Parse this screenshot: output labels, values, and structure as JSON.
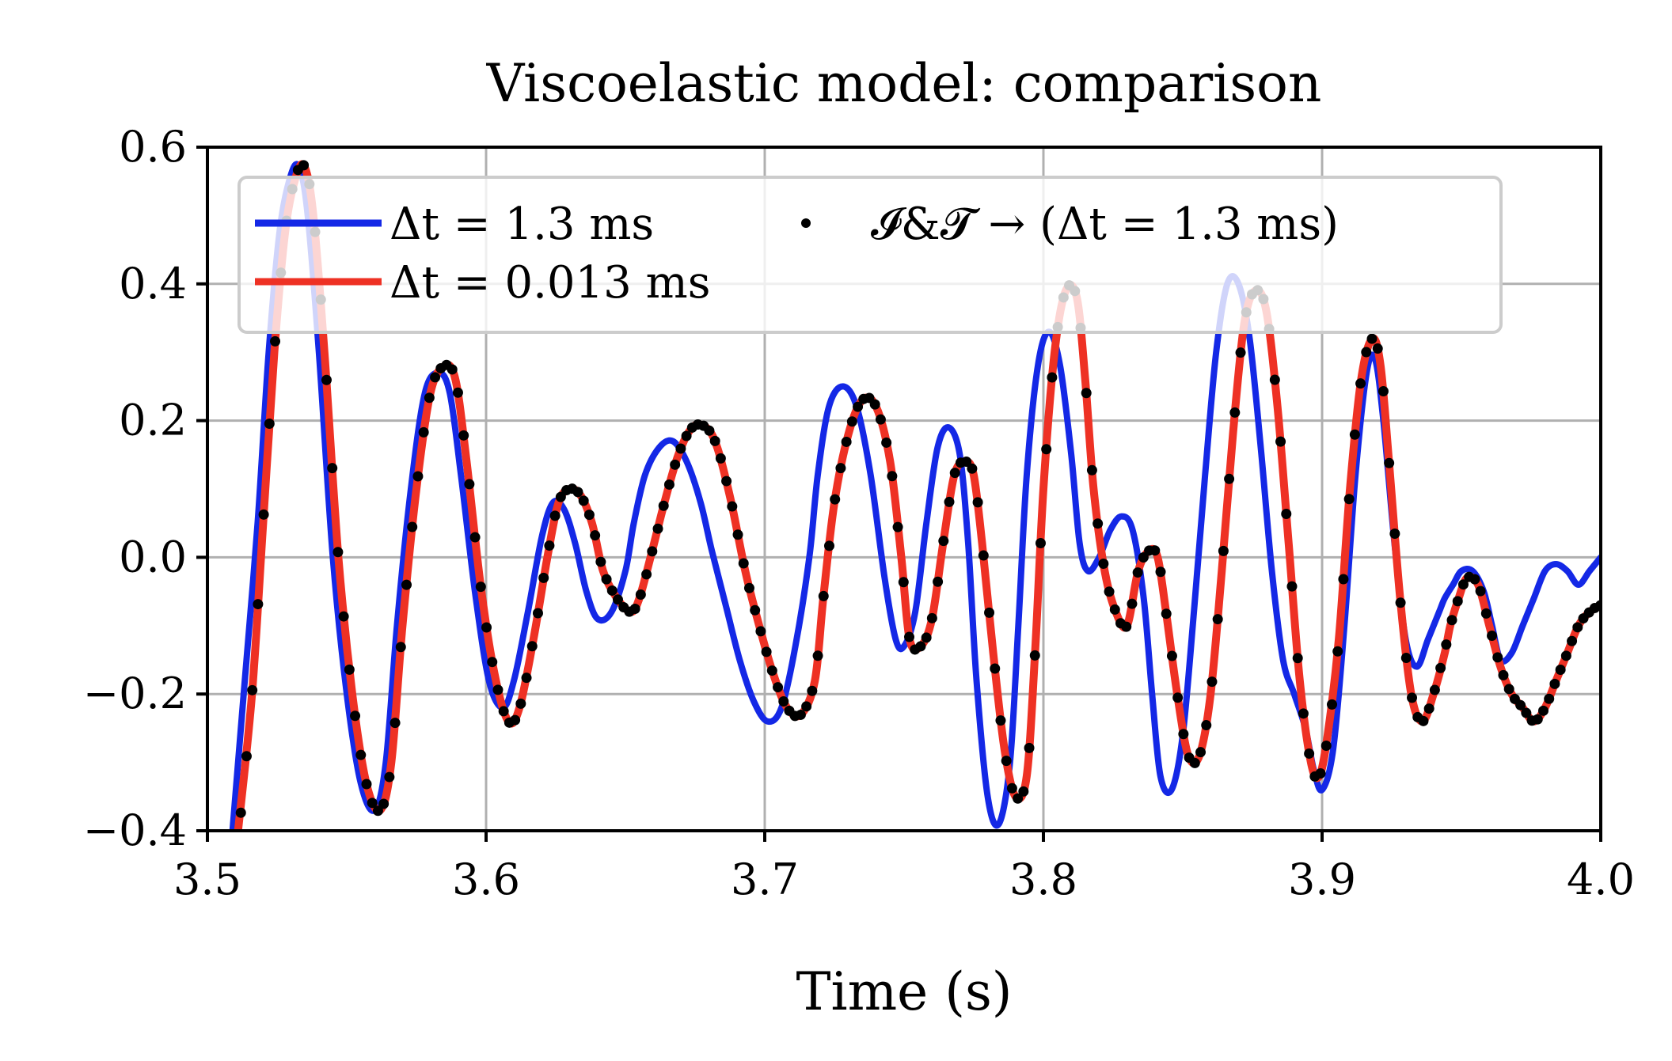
{
  "chart_data": {
    "type": "line",
    "title": "Viscoelastic model: comparison",
    "xlabel": "Time (s)",
    "ylabel": "",
    "xlim": [
      3.5,
      4.0
    ],
    "ylim": [
      -0.4,
      0.6
    ],
    "xticks": [
      3.5,
      3.6,
      3.7,
      3.8,
      3.9,
      4.0
    ],
    "xtick_labels": [
      "3.5",
      "3.6",
      "3.7",
      "3.8",
      "3.9",
      "4.0"
    ],
    "yticks": [
      -0.4,
      -0.2,
      0.0,
      0.2,
      0.4,
      0.6
    ],
    "ytick_labels": [
      "−0.4",
      "−0.2",
      "0.0",
      "0.2",
      "0.4",
      "0.6"
    ],
    "grid": true,
    "legend_position": "top",
    "colors": {
      "blue": "#1428e6",
      "red": "#ee3124",
      "black": "#000000"
    },
    "series": [
      {
        "name": "Δt = 1.3 ms",
        "color": "#1428e6",
        "style": "line",
        "x": [
          3.509,
          3.513,
          3.518,
          3.522,
          3.526,
          3.53,
          3.533,
          3.536,
          3.54,
          3.545,
          3.55,
          3.555,
          3.56,
          3.564,
          3.568,
          3.573,
          3.578,
          3.583,
          3.587,
          3.591,
          3.596,
          3.601,
          3.606,
          3.61,
          3.615,
          3.62,
          3.624,
          3.628,
          3.632,
          3.636,
          3.64,
          3.645,
          3.65,
          3.653,
          3.657,
          3.662,
          3.667,
          3.672,
          3.677,
          3.681,
          3.686,
          3.691,
          3.696,
          3.701,
          3.706,
          3.711,
          3.716,
          3.719,
          3.723,
          3.728,
          3.733,
          3.738,
          3.743,
          3.747,
          3.75,
          3.754,
          3.758,
          3.762,
          3.766,
          3.77,
          3.773,
          3.776,
          3.78,
          3.784,
          3.788,
          3.791,
          3.794,
          3.798,
          3.802,
          3.806,
          3.81,
          3.813,
          3.816,
          3.82,
          3.824,
          3.828,
          3.832,
          3.836,
          3.839,
          3.842,
          3.846,
          3.85,
          3.854,
          3.858,
          3.862,
          3.866,
          3.87,
          3.874,
          3.878,
          3.882,
          3.886,
          3.89,
          3.894,
          3.897,
          3.9,
          3.904,
          3.908,
          3.912,
          3.916,
          3.919,
          3.922,
          3.926,
          3.93,
          3.934,
          3.938,
          3.942,
          3.944,
          3.947,
          3.95,
          3.954,
          3.958,
          3.961,
          3.964,
          3.968,
          3.972,
          3.976,
          3.98,
          3.984,
          3.988,
          3.992,
          3.996,
          4.0
        ],
        "y": [
          -0.4,
          -0.2,
          0.05,
          0.3,
          0.48,
          0.56,
          0.57,
          0.5,
          0.3,
          0.0,
          -0.2,
          -0.33,
          -0.37,
          -0.3,
          -0.1,
          0.1,
          0.24,
          0.27,
          0.24,
          0.12,
          -0.05,
          -0.18,
          -0.22,
          -0.18,
          -0.08,
          0.03,
          0.08,
          0.07,
          0.02,
          -0.05,
          -0.09,
          -0.08,
          -0.02,
          0.05,
          0.12,
          0.16,
          0.17,
          0.14,
          0.08,
          0.01,
          -0.07,
          -0.15,
          -0.21,
          -0.24,
          -0.22,
          -0.13,
          0.0,
          0.12,
          0.22,
          0.25,
          0.22,
          0.12,
          -0.03,
          -0.12,
          -0.13,
          -0.08,
          0.05,
          0.16,
          0.19,
          0.15,
          0.02,
          -0.18,
          -0.35,
          -0.39,
          -0.3,
          -0.1,
          0.12,
          0.28,
          0.33,
          0.28,
          0.15,
          0.02,
          -0.02,
          0.0,
          0.04,
          0.06,
          0.04,
          -0.06,
          -0.2,
          -0.32,
          -0.34,
          -0.26,
          -0.08,
          0.12,
          0.3,
          0.4,
          0.4,
          0.32,
          0.16,
          -0.02,
          -0.15,
          -0.2,
          -0.25,
          -0.31,
          -0.34,
          -0.28,
          -0.1,
          0.12,
          0.27,
          0.29,
          0.2,
          0.02,
          -0.12,
          -0.16,
          -0.12,
          -0.08,
          -0.06,
          -0.04,
          -0.02,
          -0.02,
          -0.05,
          -0.1,
          -0.15,
          -0.14,
          -0.1,
          -0.06,
          -0.02,
          -0.01,
          -0.02,
          -0.04,
          -0.02,
          0.0
        ],
        "line_width_data_units": null
      },
      {
        "name": "Δt = 0.013 ms",
        "color": "#ee3124",
        "style": "line",
        "x": [
          3.511,
          3.516,
          3.52,
          3.524,
          3.528,
          3.532,
          3.535,
          3.538,
          3.542,
          3.547,
          3.552,
          3.557,
          3.562,
          3.566,
          3.57,
          3.575,
          3.58,
          3.585,
          3.589,
          3.593,
          3.598,
          3.603,
          3.608,
          3.612,
          3.617,
          3.622,
          3.626,
          3.63,
          3.634,
          3.638,
          3.642,
          3.647,
          3.652,
          3.655,
          3.659,
          3.664,
          3.669,
          3.674,
          3.679,
          3.683,
          3.688,
          3.693,
          3.698,
          3.703,
          3.708,
          3.713,
          3.718,
          3.721,
          3.725,
          3.73,
          3.735,
          3.74,
          3.745,
          3.749,
          3.752,
          3.756,
          3.76,
          3.764,
          3.768,
          3.772,
          3.775,
          3.778,
          3.782,
          3.786,
          3.79,
          3.794,
          3.797,
          3.8,
          3.804,
          3.808,
          3.812,
          3.815,
          3.818,
          3.822,
          3.826,
          3.83,
          3.834,
          3.838,
          3.841,
          3.844,
          3.848,
          3.852,
          3.856,
          3.86,
          3.864,
          3.868,
          3.872,
          3.876,
          3.88,
          3.884,
          3.888,
          3.892,
          3.896,
          3.899,
          3.902,
          3.906,
          3.91,
          3.914,
          3.918,
          3.921,
          3.924,
          3.928,
          3.932,
          3.936,
          3.94,
          3.944,
          3.946,
          3.949,
          3.952,
          3.956,
          3.96,
          3.964,
          3.968,
          3.972,
          3.976,
          3.98,
          3.984,
          3.988,
          3.992,
          3.996,
          4.0
        ],
        "y": [
          -0.4,
          -0.2,
          0.05,
          0.3,
          0.48,
          0.56,
          0.57,
          0.5,
          0.3,
          0.0,
          -0.2,
          -0.33,
          -0.37,
          -0.3,
          -0.1,
          0.1,
          0.24,
          0.28,
          0.26,
          0.14,
          -0.04,
          -0.17,
          -0.24,
          -0.22,
          -0.12,
          0.0,
          0.08,
          0.1,
          0.09,
          0.05,
          -0.02,
          -0.06,
          -0.08,
          -0.06,
          0.0,
          0.08,
          0.15,
          0.19,
          0.19,
          0.16,
          0.08,
          -0.02,
          -0.1,
          -0.17,
          -0.22,
          -0.23,
          -0.18,
          -0.06,
          0.08,
          0.18,
          0.23,
          0.22,
          0.14,
          0.0,
          -0.12,
          -0.13,
          -0.09,
          0.02,
          0.12,
          0.14,
          0.12,
          0.02,
          -0.14,
          -0.28,
          -0.35,
          -0.32,
          -0.14,
          0.1,
          0.3,
          0.39,
          0.38,
          0.26,
          0.1,
          -0.02,
          -0.08,
          -0.1,
          -0.02,
          0.01,
          0.0,
          -0.08,
          -0.2,
          -0.29,
          -0.29,
          -0.2,
          -0.02,
          0.18,
          0.34,
          0.39,
          0.36,
          0.22,
          0.02,
          -0.18,
          -0.3,
          -0.32,
          -0.26,
          -0.12,
          0.1,
          0.26,
          0.32,
          0.28,
          0.14,
          -0.06,
          -0.2,
          -0.24,
          -0.2,
          -0.14,
          -0.1,
          -0.06,
          -0.03,
          -0.04,
          -0.1,
          -0.16,
          -0.2,
          -0.22,
          -0.24,
          -0.22,
          -0.18,
          -0.14,
          -0.1,
          -0.08,
          -0.07
        ],
        "line_width_data_units": null
      },
      {
        "name": "𝓘&𝓣 → (Δt = 1.3 ms)",
        "color": "#000000",
        "style": "dots",
        "x": [],
        "y": []
      }
    ]
  }
}
